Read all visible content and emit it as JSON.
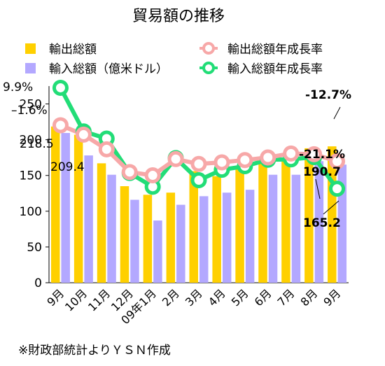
{
  "chart_data": {
    "type": "bar",
    "title": "貿易額の推移",
    "categories": [
      "9月",
      "10月",
      "11月",
      "12月",
      "09年1月",
      "2月",
      "3月",
      "4月",
      "5月",
      "6月",
      "7月",
      "8月",
      "9月"
    ],
    "ylim": [
      0,
      250
    ],
    "yticks": [
      0,
      50,
      100,
      150,
      200,
      250
    ],
    "grid": false,
    "legend_position": "top",
    "series": [
      {
        "name": "輸出総額",
        "kind": "bar",
        "color": "#FFD000",
        "values": [
          218.5,
          207,
          167,
          135,
          123,
          126,
          156,
          149,
          161,
          170,
          172,
          188,
          190.7
        ]
      },
      {
        "name": "輸入総額（億米ドル）",
        "kind": "bar",
        "color": "#B3A8FF",
        "values": [
          209.4,
          178,
          151,
          116,
          87,
          109,
          121,
          126,
          130,
          151,
          151,
          170,
          165.2
        ]
      },
      {
        "name": "輸出総額年成長率",
        "kind": "line",
        "color": "#F7A8A8",
        "values": [
          -1.6,
          -4.5,
          -9.0,
          -16.0,
          -17.0,
          -12.0,
          -13.5,
          -13.0,
          -12.3,
          -11.5,
          -10.3,
          -10.5,
          -12.7
        ]
      },
      {
        "name": "輸入総額年成長率",
        "kind": "line",
        "color": "#22DD77",
        "values": [
          9.9,
          -3.5,
          -5.7,
          -16.3,
          -20.5,
          -11.7,
          -18.5,
          -15.3,
          -14.2,
          -12.2,
          -12.1,
          -11.4,
          -21.1
        ]
      }
    ],
    "annotations": {
      "export_first": "218.5",
      "import_first": "209.4",
      "export_last": "190.7",
      "import_last": "165.2",
      "rate_import_first": "9.9%",
      "rate_export_first": "–1.6%",
      "rate_export_last": "-12.7%",
      "rate_import_last": "-21.1%"
    }
  },
  "source_note": "※財政部統計よりＹＳＮ作成"
}
